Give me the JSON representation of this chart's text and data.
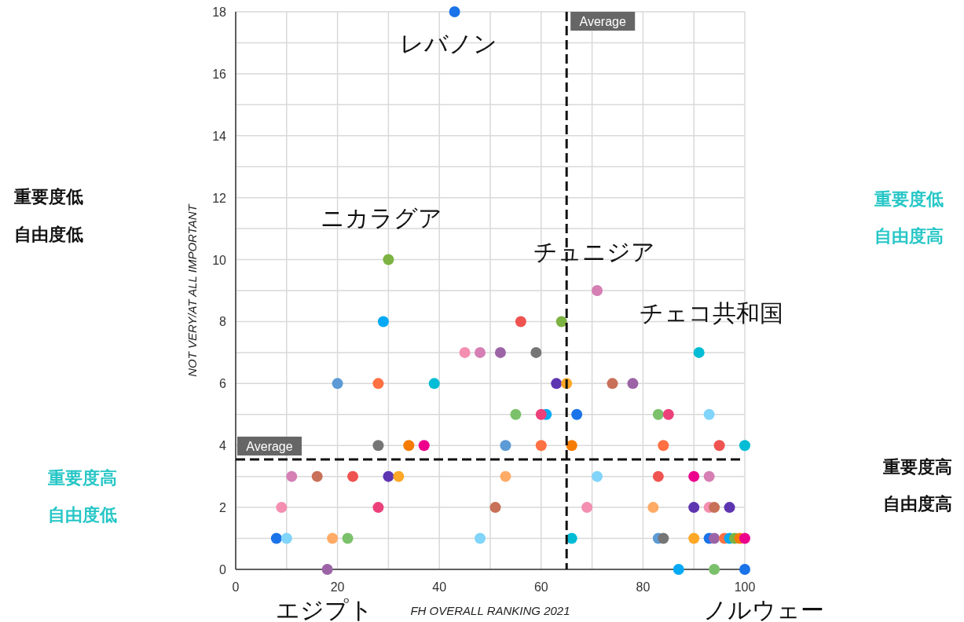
{
  "chart_data": {
    "type": "scatter",
    "xlabel": "FH OVERALL RANKING 2021",
    "ylabel": "NOT VERY/AT ALL IMPORTANT",
    "xlim": [
      0,
      100
    ],
    "ylim": [
      0,
      18
    ],
    "xticks": [
      0,
      {
        "value": 10,
        "label": null
      },
      20,
      {
        "value": 30,
        "label": null
      },
      40,
      {
        "value": 50,
        "label": null
      },
      60,
      {
        "value": 70,
        "label": null
      },
      80,
      {
        "value": 90,
        "label": null
      },
      100
    ],
    "yticks": [
      0,
      {
        "value": 1,
        "label": null
      },
      2,
      {
        "value": 3,
        "label": null
      },
      4,
      {
        "value": 5,
        "label": null
      },
      6,
      {
        "value": 7,
        "label": null
      },
      8,
      {
        "value": 9,
        "label": null
      },
      10,
      {
        "value": 11,
        "label": null
      },
      12,
      {
        "value": 13,
        "label": null
      },
      14,
      {
        "value": 15,
        "label": null
      },
      16,
      {
        "value": 17,
        "label": null
      },
      18
    ],
    "grid": true,
    "marker": "circle",
    "series": [
      {
        "x": [
          43,
          30,
          29,
          56,
          64,
          71,
          45,
          48,
          52,
          59,
          91,
          20,
          28,
          39,
          63,
          65,
          74,
          78,
          55,
          61,
          60,
          67,
          83,
          85,
          93,
          28,
          34,
          37,
          53,
          60,
          66,
          84,
          95,
          100,
          11,
          16,
          23,
          30,
          32,
          53,
          71,
          83,
          90,
          93,
          9,
          28,
          51,
          69,
          82,
          90,
          93,
          94,
          97,
          8,
          10,
          19,
          22,
          48,
          66,
          83,
          84,
          90,
          93,
          94,
          96,
          97,
          98,
          99,
          100,
          18,
          87,
          94,
          100
        ],
        "values": [
          18,
          10,
          8,
          8,
          8,
          9,
          7,
          7,
          7,
          7,
          7,
          6,
          6,
          6,
          6,
          6,
          6,
          6,
          5,
          5,
          5,
          5,
          5,
          5,
          5,
          4,
          4,
          4,
          4,
          4,
          4,
          4,
          4,
          4,
          3,
          3,
          3,
          3,
          3,
          3,
          3,
          3,
          3,
          3,
          2,
          2,
          2,
          2,
          2,
          2,
          2,
          2,
          2,
          1,
          1,
          1,
          1,
          1,
          1,
          1,
          1,
          1,
          1,
          1,
          1,
          1,
          1,
          1,
          1,
          0,
          0,
          0,
          0
        ],
        "colors": [
          "#1a73e8",
          "#7cb342",
          "#03a9f4",
          "#ef5350",
          "#7cb342",
          "#d57fb4",
          "#f48fb1",
          "#d57fb4",
          "#9c64a6",
          "#757575",
          "#00bcd4",
          "#5c9bd5",
          "#ff7043",
          "#00bcd4",
          "#5e35b1",
          "#ffa726",
          "#c87058",
          "#9c64a6",
          "#7bc16b",
          "#03a9f4",
          "#ec407a",
          "#1a73e8",
          "#7bc16b",
          "#ec407a",
          "#81d4fa",
          "#757575",
          "#f57c00",
          "#ec008c",
          "#5c9bd5",
          "#ff7043",
          "#f57c00",
          "#ff7043",
          "#ef5350",
          "#00bcd4",
          "#d57fb4",
          "#c87058",
          "#ef5350",
          "#5e35b1",
          "#ffa726",
          "#ffab66",
          "#81d4fa",
          "#ef5350",
          "#ec008c",
          "#d57fb4",
          "#f48fb1",
          "#ec407a",
          "#c87058",
          "#f48fb1",
          "#ffab66",
          "#5e35b1",
          "#f48fb1",
          "#c87058",
          "#5e35b1",
          "#1a73e8",
          "#81d4fa",
          "#ffab66",
          "#7bc16b",
          "#81d4fa",
          "#00bcd4",
          "#5c9bd5",
          "#757575",
          "#ffa726",
          "#1a73e8",
          "#9c64a6",
          "#ff7043",
          "#03a9f4",
          "#7cb342",
          "#f57c00",
          "#ec008c",
          "#9c64a6",
          "#03a9f4",
          "#7bc16b",
          "#1a73e8"
        ]
      }
    ],
    "ref_lines": [
      {
        "axis": "x",
        "value": 65,
        "label": "Average",
        "line_style": "dashed"
      },
      {
        "axis": "y",
        "value": 3.55,
        "label": "Average",
        "line_style": "dashed"
      }
    ],
    "annotations": [
      {
        "text": "レバノン",
        "x": 43,
        "y": 18
      },
      {
        "text": "ニカラグア",
        "x": 30,
        "y": 10
      },
      {
        "text": "チュニジア",
        "x": 71,
        "y": 9
      },
      {
        "text": "チェコ共和国",
        "x": 91,
        "y": 7
      },
      {
        "text": "エジプト",
        "x": 18,
        "y": 0
      },
      {
        "text": "ノルウェー",
        "x": 100,
        "y": 0
      },
      "重要度低",
      "自由度低",
      "重要度低",
      "自由度高",
      "重要度高",
      "自由度低",
      "重要度高",
      "自由度高"
    ]
  }
}
